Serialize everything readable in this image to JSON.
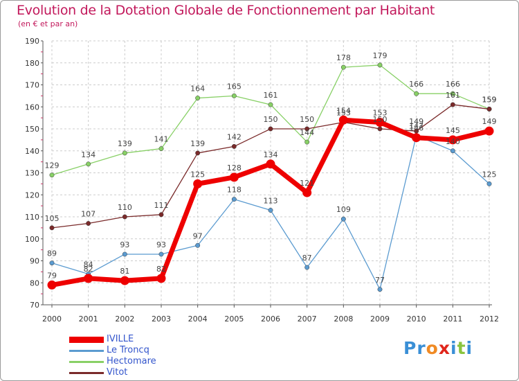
{
  "title": "Evolution de la Dotation Globale de Fonctionnement par Habitant",
  "subtitle": "(en € et par an)",
  "brand": {
    "name": "Proxiti",
    "letters": [
      "P",
      "r",
      "o",
      "x",
      "i",
      "t",
      "i"
    ],
    "colors": [
      "#3a8fd6",
      "#3a8fd6",
      "#f08a24",
      "#e0261b",
      "#3a8fd6",
      "#8ac43f",
      "#3a8fd6"
    ]
  },
  "chart_data": {
    "type": "line",
    "title": "Evolution de la Dotation Globale de Fonctionnement par Habitant",
    "ylabel": "(en € et par an)",
    "xlabel": "",
    "x": [
      "2000",
      "2001",
      "2002",
      "2003",
      "2004",
      "2005",
      "2006",
      "2007",
      "2008",
      "2009",
      "2010",
      "2011",
      "2012"
    ],
    "ylim": [
      70,
      190
    ],
    "yticks": [
      70,
      80,
      90,
      100,
      110,
      120,
      130,
      140,
      150,
      160,
      170,
      180,
      190
    ],
    "grid": true,
    "series": [
      {
        "name": "IVILLE",
        "color": "#ee0000",
        "width": 7,
        "marker": 6.5,
        "values": [
          79,
          82,
          81,
          82,
          125,
          128,
          134,
          121,
          154,
          153,
          146,
          145,
          149
        ]
      },
      {
        "name": "Le Troncq",
        "color": "#5b9bd0",
        "width": 1.3,
        "marker": 3.2,
        "values": [
          89,
          84,
          93,
          93,
          97,
          118,
          113,
          87,
          109,
          77,
          147,
          140,
          125
        ]
      },
      {
        "name": "Hectomare",
        "color": "#88d066",
        "width": 1.3,
        "marker": 3.2,
        "values": [
          129,
          134,
          139,
          141,
          164,
          165,
          161,
          144,
          178,
          179,
          166,
          166,
          159
        ]
      },
      {
        "name": "Vitot",
        "color": "#7a2a2a",
        "width": 1.3,
        "marker": 3.2,
        "values": [
          105,
          107,
          110,
          111,
          139,
          142,
          150,
          150,
          153,
          150,
          149,
          161,
          159
        ]
      }
    ]
  }
}
